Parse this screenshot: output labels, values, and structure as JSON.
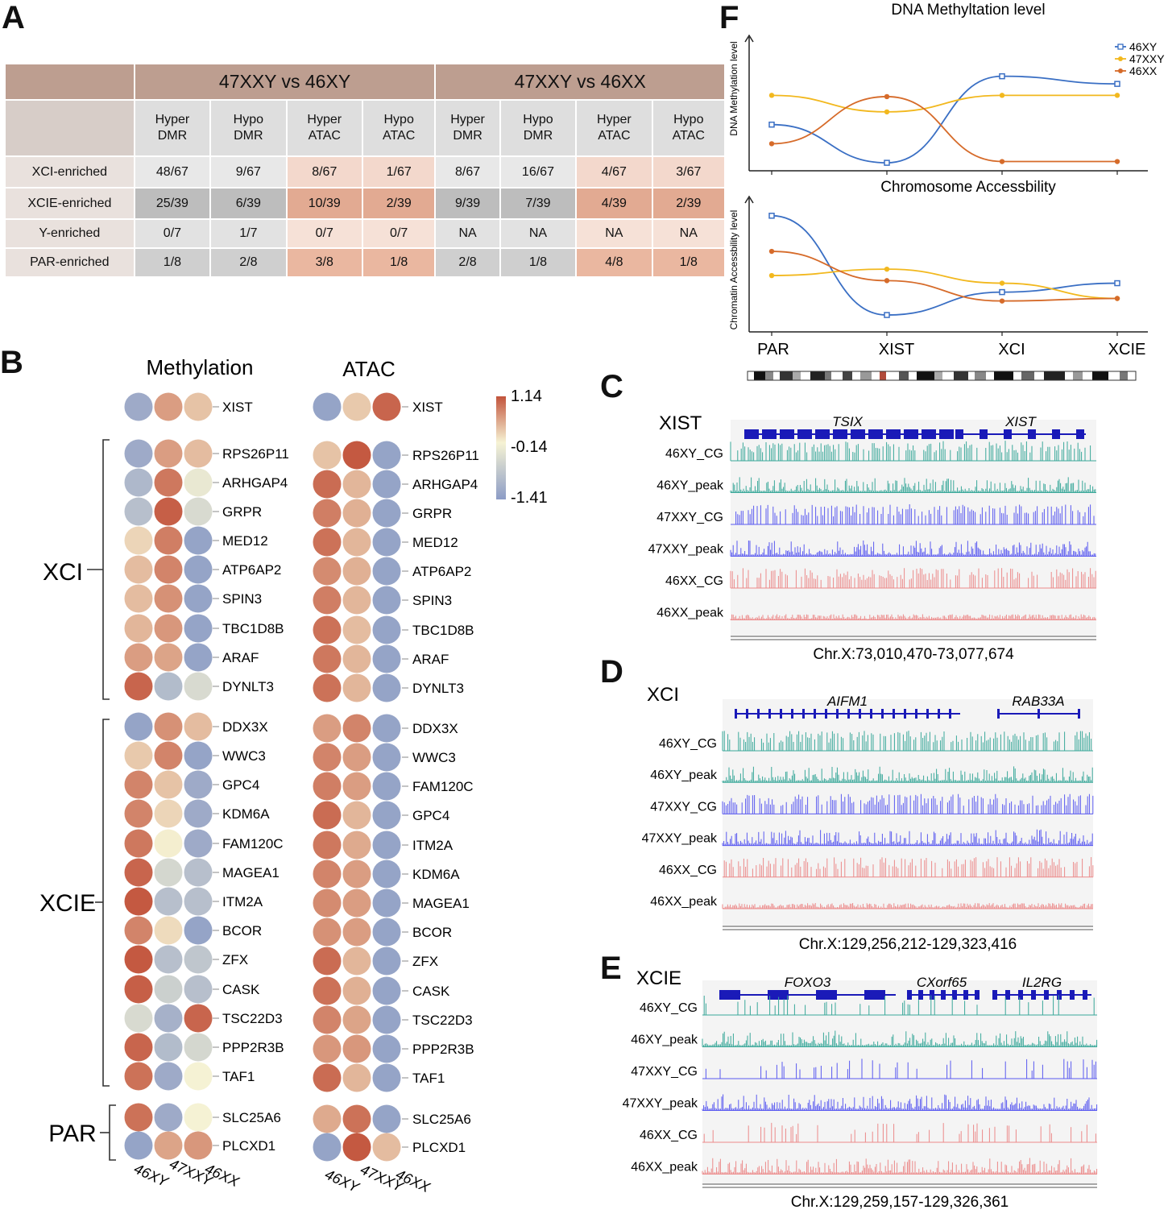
{
  "panel_labels": {
    "A": "A",
    "B": "B",
    "C": "C",
    "D": "D",
    "E": "E",
    "F": "F"
  },
  "tableA": {
    "groups": [
      "47XXY vs 46XY",
      "47XXY vs 46XX"
    ],
    "subheaders": [
      [
        "Hyper",
        "DMR"
      ],
      [
        "Hypo",
        "DMR"
      ],
      [
        "Hyper",
        "ATAC"
      ],
      [
        "Hypo",
        "ATAC"
      ],
      [
        "Hyper",
        "DMR"
      ],
      [
        "Hypo",
        "DMR"
      ],
      [
        "Hyper",
        "ATAC"
      ],
      [
        "Hypo",
        "ATAC"
      ]
    ],
    "rows": [
      {
        "label": "XCI-enriched",
        "cells": [
          "48/67",
          "9/67",
          "8/67",
          "1/67",
          "8/67",
          "16/67",
          "4/67",
          "3/67"
        ]
      },
      {
        "label": "XCIE-enriched",
        "cells": [
          "25/39",
          "6/39",
          "10/39",
          "2/39",
          "9/39",
          "7/39",
          "4/39",
          "2/39"
        ]
      },
      {
        "label": "Y-enriched",
        "cells": [
          "0/7",
          "1/7",
          "0/7",
          "0/7",
          "NA",
          "NA",
          "NA",
          "NA"
        ]
      },
      {
        "label": "PAR-enriched",
        "cells": [
          "1/8",
          "2/8",
          "3/8",
          "1/8",
          "2/8",
          "1/8",
          "4/8",
          "1/8"
        ]
      }
    ]
  },
  "panelB": {
    "methylation_title": "Methylation",
    "atac_title": "ATAC",
    "colorbar": {
      "max": "1.14",
      "mid": "-0.14",
      "min": "-1.41",
      "max_value": 1.14,
      "mid_value": -0.14,
      "min_value": -1.41
    },
    "groups": {
      "xci": "XCI",
      "xcie": "XCIE",
      "par": "PAR"
    },
    "sample_labels": [
      "46XY",
      "47XXY",
      "46XX"
    ],
    "methylation_genes": [
      "XIST",
      "RPS26P11",
      "ARHGAP4",
      "GRPR",
      "MED12",
      "ATP6AP2",
      "SPIN3",
      "TBC1D8B",
      "ARAF",
      "DYNLT3",
      "DDX3X",
      "WWC3",
      "GPC4",
      "KDM6A",
      "FAM120C",
      "MAGEA1",
      "ITM2A",
      "BCOR",
      "ZFX",
      "CASK",
      "TSC22D3",
      "PPP2R3B",
      "TAF1",
      "SLC25A6",
      "PLCXD1"
    ],
    "methylation_values": [
      [
        -1.2,
        0.55,
        0.25
      ],
      [
        -1.2,
        0.55,
        0.3
      ],
      [
        -1.0,
        0.85,
        -0.3
      ],
      [
        -0.9,
        1.05,
        -0.5
      ],
      [
        0.1,
        0.8,
        -1.3
      ],
      [
        0.3,
        0.75,
        -1.3
      ],
      [
        0.3,
        0.65,
        -1.3
      ],
      [
        0.35,
        0.6,
        -1.3
      ],
      [
        0.55,
        0.5,
        -1.3
      ],
      [
        1.0,
        -0.95,
        -0.5
      ],
      [
        -1.3,
        0.65,
        0.3
      ],
      [
        0.2,
        0.75,
        -1.3
      ],
      [
        0.75,
        0.25,
        -1.2
      ],
      [
        0.75,
        0.1,
        -1.2
      ],
      [
        0.85,
        -0.1,
        -1.2
      ],
      [
        1.0,
        -0.55,
        -0.9
      ],
      [
        1.1,
        -0.9,
        -0.9
      ],
      [
        0.75,
        0.05,
        -1.3
      ],
      [
        1.1,
        -0.9,
        -0.8
      ],
      [
        1.05,
        -0.65,
        -0.9
      ],
      [
        -0.5,
        -1.1,
        1.0
      ],
      [
        1.0,
        -0.95,
        -0.55
      ],
      [
        0.9,
        -1.2,
        -0.15
      ],
      [
        0.9,
        -1.2,
        -0.15
      ],
      [
        -1.3,
        0.5,
        0.6
      ]
    ],
    "atac_genes": [
      "XIST",
      "RPS26P11",
      "ARHGAP4",
      "GRPR",
      "MED12",
      "ATP6AP2",
      "SPIN3",
      "TBC1D8B",
      "ARAF",
      "DYNLT3",
      "DDX3X",
      "WWC3",
      "FAM120C",
      "GPC4",
      "ITM2A",
      "KDM6A",
      "MAGEA1",
      "BCOR",
      "ZFX",
      "CASK",
      "TSC22D3",
      "PPP2R3B",
      "TAF1",
      "SLC25A6",
      "PLCXD1"
    ],
    "atac_values": [
      [
        -1.3,
        0.2,
        1.0
      ],
      [
        0.25,
        1.1,
        -1.3
      ],
      [
        0.95,
        0.35,
        -1.3
      ],
      [
        0.8,
        0.4,
        -1.3
      ],
      [
        0.9,
        0.35,
        -1.3
      ],
      [
        0.7,
        0.4,
        -1.3
      ],
      [
        0.8,
        0.35,
        -1.3
      ],
      [
        0.9,
        0.3,
        -1.3
      ],
      [
        0.85,
        0.35,
        -1.3
      ],
      [
        0.9,
        0.35,
        -1.3
      ],
      [
        0.55,
        0.75,
        -1.3
      ],
      [
        0.75,
        0.55,
        -1.3
      ],
      [
        0.8,
        0.55,
        -1.3
      ],
      [
        0.95,
        0.35,
        -1.3
      ],
      [
        0.85,
        0.45,
        -1.3
      ],
      [
        0.75,
        0.55,
        -1.3
      ],
      [
        0.7,
        0.55,
        -1.3
      ],
      [
        0.65,
        0.55,
        -1.3
      ],
      [
        0.95,
        0.35,
        -1.3
      ],
      [
        0.9,
        0.4,
        -1.3
      ],
      [
        0.75,
        0.5,
        -1.3
      ],
      [
        0.6,
        0.6,
        -1.3
      ],
      [
        0.95,
        0.35,
        -1.3
      ],
      [
        0.45,
        0.9,
        -1.3
      ],
      [
        -1.3,
        1.1,
        0.3
      ]
    ]
  },
  "panelC": {
    "title": "XIST",
    "genes": [
      "TSIX",
      "XIST"
    ],
    "tracks": [
      "46XY_CG",
      "46XY_peak",
      "47XXY_CG",
      "47XXY_peak",
      "46XX_CG",
      "46XX_peak"
    ],
    "coordinate": "Chr.X:73,010,470-73,077,674"
  },
  "panelD": {
    "title": "XCI",
    "genes": [
      "AIFM1",
      "RAB33A"
    ],
    "tracks": [
      "46XY_CG",
      "46XY_peak",
      "47XXY_CG",
      "47XXY_peak",
      "46XX_CG",
      "46XX_peak"
    ],
    "coordinate": "Chr.X:129,256,212-129,323,416"
  },
  "panelE": {
    "title": "XCIE",
    "genes": [
      "FOXO3",
      "CXorf65",
      "IL2RG"
    ],
    "tracks": [
      "46XY_CG",
      "46XY_peak",
      "47XXY_CG",
      "47XXY_peak",
      "46XX_CG",
      "46XX_peak"
    ],
    "coordinate": "Chr.X:129,259,157-129,326,361"
  },
  "chart_data": [
    {
      "type": "line",
      "title": "DNA Methyltation level",
      "ylabel": "DNA Methylation level",
      "categories": [
        "PAR",
        "XIST",
        "XCI",
        "XCIE"
      ],
      "series": [
        {
          "name": "46XY",
          "color": "#3a6fc4",
          "values": [
            0.35,
            0.05,
            0.73,
            0.67
          ]
        },
        {
          "name": "47XXY",
          "color": "#f2b81e",
          "values": [
            0.58,
            0.45,
            0.58,
            0.58
          ]
        },
        {
          "name": "46XX",
          "color": "#d66b2a",
          "values": [
            0.2,
            0.57,
            0.06,
            0.06
          ]
        }
      ],
      "ylim": [
        0,
        1
      ]
    },
    {
      "type": "line",
      "title": "Chromosome Accessbility",
      "ylabel": "Chromatin Accessbility level",
      "categories": [
        "PAR",
        "XIST",
        "XCI",
        "XCIE"
      ],
      "series": [
        {
          "name": "46XY",
          "color": "#3a6fc4",
          "values": [
            0.9,
            0.12,
            0.3,
            0.37
          ]
        },
        {
          "name": "47XXY",
          "color": "#f2b81e",
          "values": [
            0.43,
            0.48,
            0.37,
            0.25
          ]
        },
        {
          "name": "46XX",
          "color": "#d66b2a",
          "values": [
            0.62,
            0.39,
            0.23,
            0.25
          ]
        }
      ],
      "ylim": [
        0,
        1
      ]
    }
  ],
  "colors": {
    "methyl_high": "#c2543c",
    "mid": "#f6f3d4",
    "low": "#8c9cc6",
    "cg_teal": "#3aa89a",
    "cg_blue": "#5a5af0",
    "cg_pink": "#ec8a8a",
    "gene_blue": "#1a1ab8"
  }
}
